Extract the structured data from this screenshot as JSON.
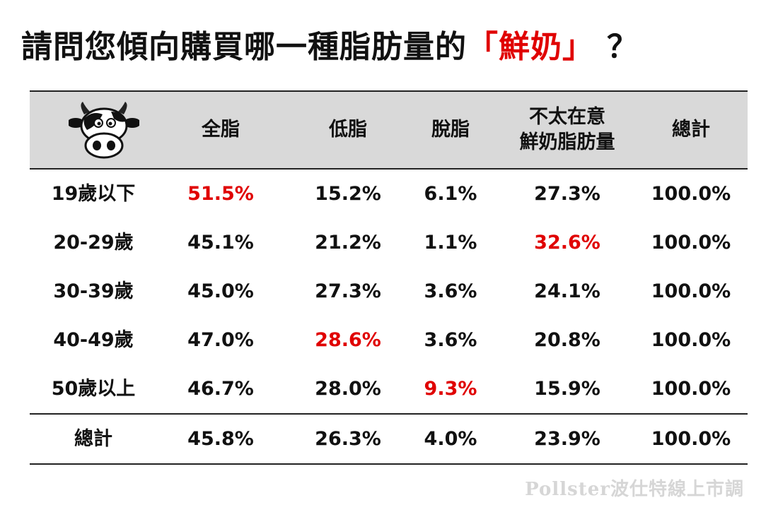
{
  "title": {
    "main": "請問您傾向購買哪一種脂肪量的",
    "highlight": "「鮮奶」",
    "question_mark": "？"
  },
  "header": {
    "cow_icon": "cow-face-icon",
    "columns": [
      "全脂",
      "低脂",
      "脫脂",
      "不太在意",
      "鮮奶脂肪量",
      "總計"
    ]
  },
  "chart_data": {
    "type": "table",
    "title": "請問您傾向購買哪一種脂肪量的「鮮奶」？",
    "columns": [
      "全脂",
      "低脂",
      "脫脂",
      "不太在意鮮奶脂肪量",
      "總計"
    ],
    "rows": [
      {
        "label": "19歲以下",
        "values": [
          "51.5%",
          "15.2%",
          "6.1%",
          "27.3%",
          "100.0%"
        ],
        "highlight": [
          0
        ]
      },
      {
        "label": "20-29歲",
        "values": [
          "45.1%",
          "21.2%",
          "1.1%",
          "32.6%",
          "100.0%"
        ],
        "highlight": [
          3
        ]
      },
      {
        "label": "30-39歲",
        "values": [
          "45.0%",
          "27.3%",
          "3.6%",
          "24.1%",
          "100.0%"
        ],
        "highlight": []
      },
      {
        "label": "40-49歲",
        "values": [
          "47.0%",
          "28.6%",
          "3.6%",
          "20.8%",
          "100.0%"
        ],
        "highlight": [
          1
        ]
      },
      {
        "label": "50歲以上",
        "values": [
          "46.7%",
          "28.0%",
          "9.3%",
          "15.9%",
          "100.0%"
        ],
        "highlight": [
          2
        ]
      },
      {
        "label": "總計",
        "values": [
          "45.8%",
          "26.3%",
          "4.0%",
          "23.9%",
          "100.0%"
        ],
        "highlight": []
      }
    ],
    "highlight_color": "#e00000"
  },
  "watermark": "Pollster波仕特線上市調"
}
